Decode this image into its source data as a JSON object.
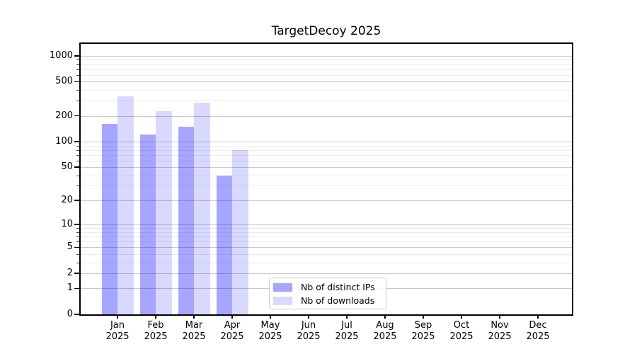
{
  "title": "TargetDecoy 2025",
  "chart_data": {
    "type": "bar",
    "title": "TargetDecoy 2025",
    "scale": "log-like y axis: position proportional to log10(value+1), 0 at baseline",
    "categories": [
      "Jan 2025",
      "Feb 2025",
      "Mar 2025",
      "Apr 2025",
      "May 2025",
      "Jun 2025",
      "Jul 2025",
      "Aug 2025",
      "Sep 2025",
      "Oct 2025",
      "Nov 2025",
      "Dec 2025"
    ],
    "series": [
      {
        "name": "Nb of distinct IPs",
        "color": "rgba(0,0,255,0.35)",
        "values": [
          160,
          120,
          150,
          40,
          0,
          0,
          0,
          0,
          0,
          0,
          0,
          0
        ]
      },
      {
        "name": "Nb of downloads",
        "color": "rgba(0,0,255,0.15)",
        "values": [
          335,
          225,
          285,
          80,
          0,
          0,
          0,
          0,
          0,
          0,
          0,
          0
        ]
      }
    ],
    "yticks": [
      0,
      1,
      2,
      5,
      10,
      20,
      50,
      100,
      200,
      500,
      1000
    ],
    "ylim": [
      0,
      1400
    ],
    "xlabel": "",
    "ylabel": "",
    "legend_position": "lower center",
    "grid": {
      "major_values": [
        1,
        2,
        5,
        10,
        20,
        50,
        100,
        200,
        500,
        1000
      ],
      "minor_values": [
        3,
        4,
        6,
        7,
        8,
        9,
        30,
        40,
        60,
        70,
        80,
        90,
        300,
        400,
        600,
        700,
        800,
        900
      ],
      "major_color": "#c9c9c9",
      "minor_color": "#ebebeb"
    },
    "colors": {
      "axis": "#000000",
      "background": "#ffffff"
    }
  }
}
